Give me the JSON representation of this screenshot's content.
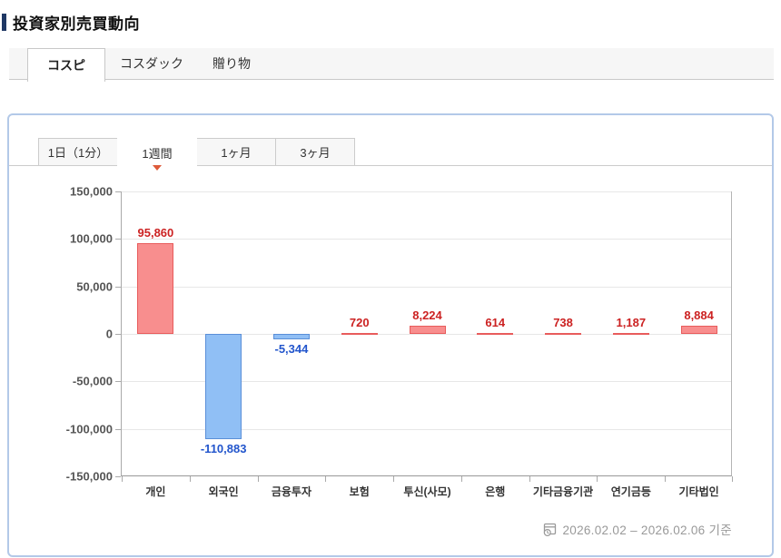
{
  "header": {
    "title": "投資家別売買動向"
  },
  "market_tabs": [
    {
      "label": "コスピ",
      "active": true
    },
    {
      "label": "コスダック",
      "active": false
    },
    {
      "label": "贈り物",
      "active": false
    }
  ],
  "period_tabs": [
    {
      "label": "1日（1分）",
      "active": false
    },
    {
      "label": "1週間",
      "active": true
    },
    {
      "label": "1ヶ月",
      "active": false
    },
    {
      "label": "3ヶ月",
      "active": false
    }
  ],
  "chart_data": {
    "type": "bar",
    "title": "",
    "categories": [
      "개인",
      "외국인",
      "금융투자",
      "보험",
      "투신(사모)",
      "은행",
      "기타금융기관",
      "연기금등",
      "기타법인"
    ],
    "values": [
      95860,
      -110883,
      -5344,
      720,
      8224,
      614,
      738,
      1187,
      8884
    ],
    "value_labels": [
      "95,860",
      "-110,883",
      "-5,344",
      "720",
      "8,224",
      "614",
      "738",
      "1,187",
      "8,884"
    ],
    "ylim": [
      -150000,
      150000
    ],
    "ytick_step": 50000,
    "ytick_labels": [
      "150,000",
      "100,000",
      "50,000",
      "0",
      "-50,000",
      "-100,000",
      "-150,000"
    ],
    "grid": true,
    "legend": false,
    "colors": {
      "positive_fill": "#f88e8e",
      "positive_border": "#e85c5c",
      "positive_label": "#cc2222",
      "negative_fill": "#90bff5",
      "negative_border": "#5a8fd8",
      "negative_label": "#2255cc"
    }
  },
  "footer": {
    "icon": "calendar-clock-icon",
    "caption": "2026.02.02 – 2026.02.06 기준"
  },
  "ui_colors": {
    "panel_border": "#b3c9e8",
    "title_bar": "#1f3864",
    "tab_marker": "#dd5a3a"
  }
}
